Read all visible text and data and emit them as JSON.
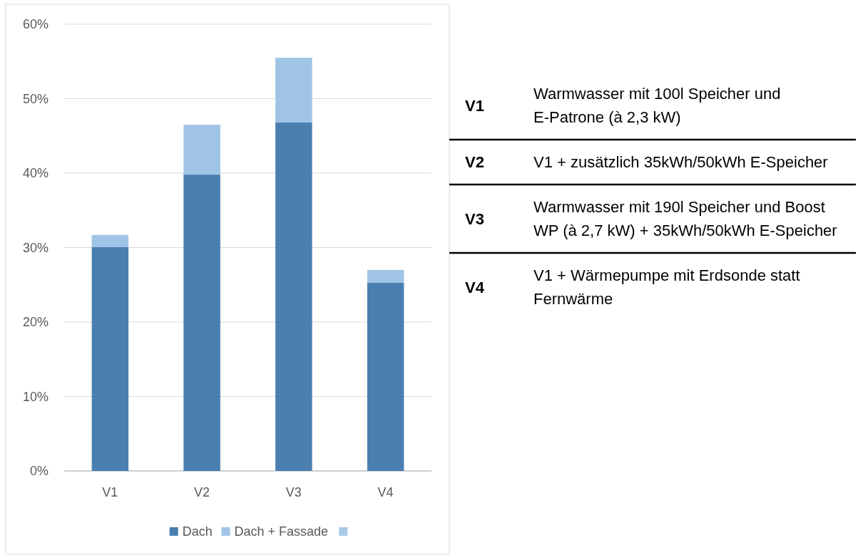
{
  "chart_data": [
    {
      "type": "bar",
      "stacked": true,
      "categories": [
        "V1",
        "V2",
        "V3",
        "V4"
      ],
      "series": [
        {
          "name": "Dach",
          "color": "#4a7fb0",
          "values": [
            30.1,
            39.8,
            46.8,
            25.3
          ]
        },
        {
          "name": "Dach + Fassade",
          "color": "#a0c4e6",
          "values": [
            1.6,
            6.7,
            8.7,
            1.7
          ]
        },
        {
          "color": "#a9cbea",
          "values": [
            null,
            null,
            null,
            null
          ]
        }
      ],
      "ylim": [
        0,
        60
      ],
      "yticks": [
        {
          "value": 0,
          "label": "0%"
        },
        {
          "value": 10,
          "label": "10%"
        },
        {
          "value": 20,
          "label": "20%"
        },
        {
          "value": 30,
          "label": "30%"
        },
        {
          "value": 40,
          "label": "40%"
        },
        {
          "value": 50,
          "label": "50%"
        },
        {
          "value": 60,
          "label": "60%"
        }
      ],
      "grid": "y",
      "legend": "bottom"
    },
    {
      "type": "other",
      "annotations": [
        "V1",
        "Warmwasser mit 100l Speicher und E-Patrone (à 2,3 kW)",
        "V2",
        "V1 + zusätzlich 35kWh/50kWh E-Speicher",
        "V3",
        "Warmwasser mit 190l Speicher und Boost WP (à 2,7 kW) + 35kWh/50kWh E-Speicher",
        "V4",
        "V1 + Wärmepumpe mit Erdsonde statt Fernwärme"
      ]
    }
  ]
}
